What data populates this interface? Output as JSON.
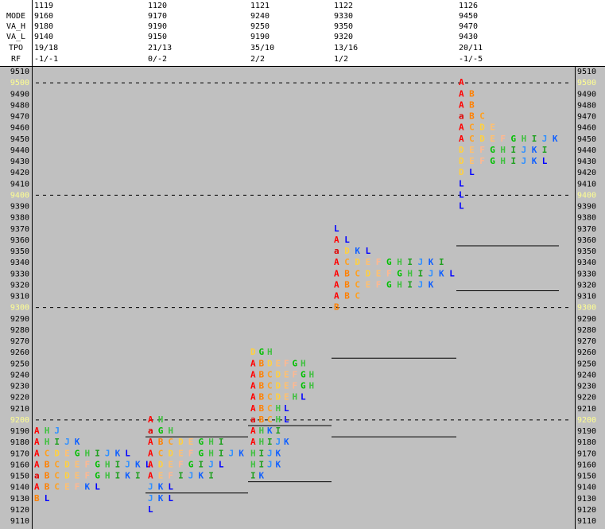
{
  "chart_data": {
    "type": "market-profile",
    "row_labels": [
      "MODE",
      "VA_H",
      "VA_L",
      "TPO",
      "RF"
    ],
    "price_ticks": [
      9510,
      9500,
      9490,
      9480,
      9470,
      9460,
      9450,
      9440,
      9430,
      9420,
      9410,
      9400,
      9390,
      9380,
      9370,
      9360,
      9350,
      9340,
      9330,
      9320,
      9310,
      9300,
      9290,
      9280,
      9270,
      9260,
      9250,
      9240,
      9230,
      9220,
      9210,
      9200,
      9190,
      9180,
      9170,
      9160,
      9150,
      9140,
      9130,
      9120,
      9110
    ],
    "letter_colors": {
      "A": "#ff0000",
      "a": "#e00000",
      "B": "#ff8000",
      "C": "#ffa020",
      "D": "#ffd040",
      "E": "#ffc070",
      "F": "#ffb890",
      "G": "#00c000",
      "H": "#40c040",
      "I": "#20a020",
      "J": "#3090ff",
      "K": "#1060ff",
      "L": "#0000ff"
    },
    "columns": [
      {
        "date": "1119",
        "mode": 9160,
        "va_h": 9180,
        "va_l": 9140,
        "tpo": "19/18",
        "rf": "-1/-1",
        "profile": [
          {
            "price": 9190,
            "letters": "AHJ"
          },
          {
            "price": 9180,
            "letters": "AHIJK"
          },
          {
            "price": 9170,
            "letters": "ACDEGHIJKL"
          },
          {
            "price": 9160,
            "letters": "ABCDEFGHIJKL"
          },
          {
            "price": 9150,
            "letters": "aBCDEFGHIKI"
          },
          {
            "price": 9140,
            "letters": "ABCEFKL"
          },
          {
            "price": 9130,
            "letters": "BL"
          }
        ]
      },
      {
        "date": "1120",
        "mode": 9170,
        "va_h": 9190,
        "va_l": 9150,
        "tpo": "21/13",
        "rf": "0/-2",
        "profile": [
          {
            "price": 9200,
            "letters": "AH"
          },
          {
            "price": 9190,
            "letters": "aGH"
          },
          {
            "price": 9180,
            "letters": "ABCDEGHI"
          },
          {
            "price": 9170,
            "letters": "ACDEFGHIJK"
          },
          {
            "price": 9160,
            "letters": "ADEFGIJL"
          },
          {
            "price": 9150,
            "letters": "AEFIJKI"
          },
          {
            "price": 9140,
            "letters": "JKL"
          },
          {
            "price": 9130,
            "letters": "JKL"
          },
          {
            "price": 9120,
            "letters": "L"
          }
        ]
      },
      {
        "date": "1121",
        "mode": 9240,
        "va_h": 9250,
        "va_l": 9190,
        "tpo": "35/10",
        "rf": "2/2",
        "profile": [
          {
            "price": 9260,
            "letters": "DGH"
          },
          {
            "price": 9250,
            "letters": "ABDEFGH"
          },
          {
            "price": 9240,
            "letters": "ABCDEFGH"
          },
          {
            "price": 9230,
            "letters": "ABCDEFGH"
          },
          {
            "price": 9220,
            "letters": "ABCDEHL"
          },
          {
            "price": 9210,
            "letters": "ABCHL"
          },
          {
            "price": 9200,
            "letters": "aBCHL"
          },
          {
            "price": 9190,
            "letters": "AHKI"
          },
          {
            "price": 9180,
            "letters": "AHIJK"
          },
          {
            "price": 9170,
            "letters": "HIJK"
          },
          {
            "price": 9160,
            "letters": "HIJK"
          },
          {
            "price": 9150,
            "letters": "IK"
          }
        ]
      },
      {
        "date": "1122",
        "mode": 9330,
        "va_h": 9350,
        "va_l": 9320,
        "tpo": "13/16",
        "rf": "1/2",
        "profile": [
          {
            "price": 9370,
            "letters": "L"
          },
          {
            "price": 9360,
            "letters": "AL"
          },
          {
            "price": 9350,
            "letters": "aDKL"
          },
          {
            "price": 9340,
            "letters": "ACDEFGHIJKI"
          },
          {
            "price": 9330,
            "letters": "ABCDEFGHIJKL"
          },
          {
            "price": 9320,
            "letters": "ABCEFGHIJK"
          },
          {
            "price": 9310,
            "letters": "ABC"
          },
          {
            "price": 9300,
            "letters": "B"
          }
        ]
      },
      {
        "date": "1126",
        "mode": 9450,
        "va_h": 9470,
        "va_l": 9430,
        "tpo": "20/11",
        "rf": "-1/-5",
        "profile": [
          {
            "price": 9500,
            "letters": "A"
          },
          {
            "price": 9490,
            "letters": "AB"
          },
          {
            "price": 9480,
            "letters": "AB"
          },
          {
            "price": 9470,
            "letters": "aBC"
          },
          {
            "price": 9460,
            "letters": "ACDE"
          },
          {
            "price": 9450,
            "letters": "ACDEFGHIJK"
          },
          {
            "price": 9440,
            "letters": "DEFGHIJKI"
          },
          {
            "price": 9430,
            "letters": "DEFGHIJKL"
          },
          {
            "price": 9420,
            "letters": "DL"
          },
          {
            "price": 9410,
            "letters": "L"
          },
          {
            "price": 9400,
            "letters": "L"
          },
          {
            "price": 9390,
            "letters": "L"
          }
        ]
      }
    ]
  }
}
